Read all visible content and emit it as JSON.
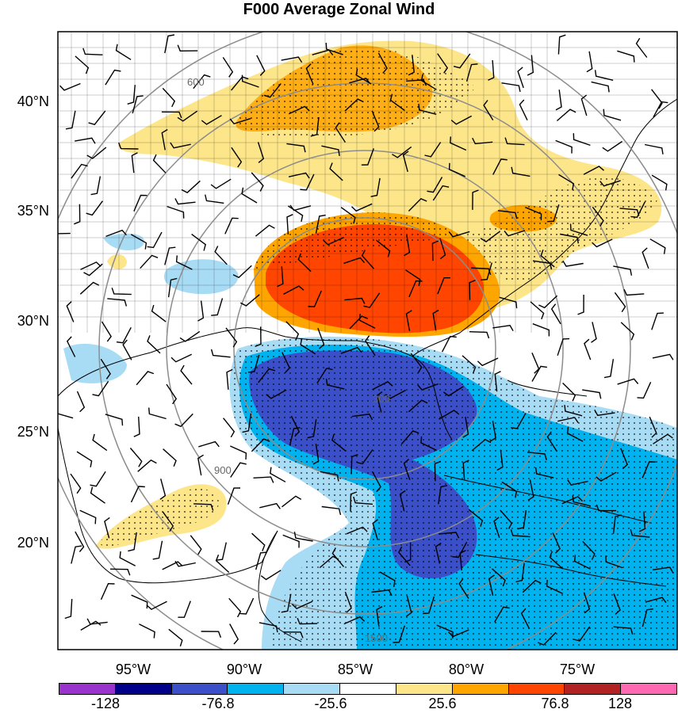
{
  "title": "F000 Average Zonal Wind",
  "lat_labels": [
    {
      "text": "40°N",
      "lat": 40
    },
    {
      "text": "35°N",
      "lat": 35
    },
    {
      "text": "30°N",
      "lat": 30
    },
    {
      "text": "25°N",
      "lat": 25
    },
    {
      "text": "20°N",
      "lat": 20
    }
  ],
  "lon_labels": [
    {
      "text": "95°W",
      "lon": -95
    },
    {
      "text": "90°W",
      "lon": -90
    },
    {
      "text": "85°W",
      "lon": -85
    },
    {
      "text": "80°W",
      "lon": -80
    },
    {
      "text": "75°W",
      "lon": -75
    }
  ],
  "range_ring_labels": [
    "300",
    "600",
    "900",
    "1500"
  ],
  "colorbar": {
    "colors": [
      "#9a32cd",
      "#00008b",
      "#3a4fc8",
      "#00b2ee",
      "#a8dcf5",
      "#ffffff",
      "#fde68a",
      "#ffa500",
      "#ff4500",
      "#b22222",
      "#ff69b4"
    ],
    "labels": [
      "-128",
      "-76.8",
      "-25.6",
      "25.6",
      "76.8",
      "128"
    ]
  },
  "colors": {
    "coast": "#000000",
    "ring": "#8c8c8c",
    "stipple": "#000000"
  }
}
